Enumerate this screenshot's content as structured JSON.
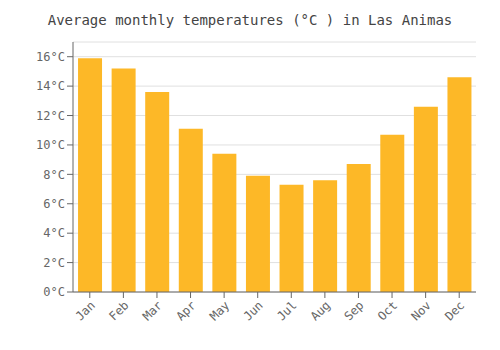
{
  "chart_data": {
    "type": "bar",
    "title": "Average monthly temperatures (°C ) in Las Animas",
    "categories": [
      "Jan",
      "Feb",
      "Mar",
      "Apr",
      "May",
      "Jun",
      "Jul",
      "Aug",
      "Sep",
      "Oct",
      "Nov",
      "Dec"
    ],
    "values": [
      15.9,
      15.2,
      13.6,
      11.1,
      9.4,
      7.9,
      7.3,
      7.6,
      8.7,
      10.7,
      12.6,
      14.6
    ],
    "color": "#FDB827",
    "ylim": [
      0,
      17
    ],
    "yticks": [
      {
        "value": 0,
        "label": "0°C"
      },
      {
        "value": 2,
        "label": "2°C"
      },
      {
        "value": 4,
        "label": "4°C"
      },
      {
        "value": 6,
        "label": "6°C"
      },
      {
        "value": 8,
        "label": "8°C"
      },
      {
        "value": 10,
        "label": "10°C"
      },
      {
        "value": 12,
        "label": "12°C"
      },
      {
        "value": 14,
        "label": "14°C"
      },
      {
        "value": 16,
        "label": "16°C"
      }
    ],
    "grid": true
  }
}
